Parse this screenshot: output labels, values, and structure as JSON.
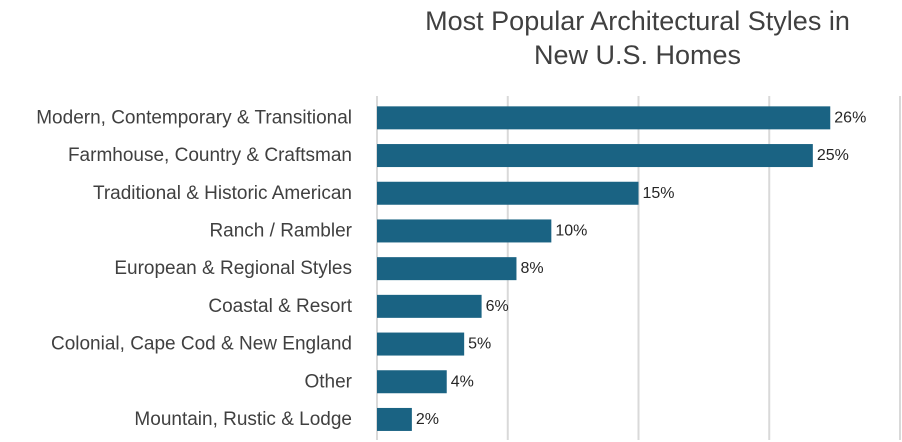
{
  "chart_data": {
    "type": "bar",
    "orientation": "horizontal",
    "title": "Most Popular Architectural Styles in New U.S. Homes",
    "title_lines": [
      "Most Popular Architectural Styles in",
      "New U.S. Homes"
    ],
    "categories": [
      "Modern, Contemporary & Transitional",
      "Farmhouse, Country & Craftsman",
      "Traditional & Historic American",
      "Ranch / Rambler",
      "European & Regional Styles",
      "Coastal & Resort",
      "Colonial, Cape Cod & New England",
      "Other",
      "Mountain, Rustic & Lodge"
    ],
    "values": [
      26,
      25,
      15,
      10,
      8,
      6,
      5,
      4,
      2
    ],
    "value_labels": [
      "26%",
      "25%",
      "15%",
      "10%",
      "8%",
      "6%",
      "5%",
      "4%",
      "2%"
    ],
    "unit": "%",
    "xlim": [
      0,
      30
    ],
    "gridlines": [
      0,
      7.5,
      15,
      22.5,
      30
    ],
    "grid": true,
    "legend": "none",
    "bar_color": "#1a6383",
    "gridline_color": "#d9d9d9",
    "text_color": "#404040"
  }
}
